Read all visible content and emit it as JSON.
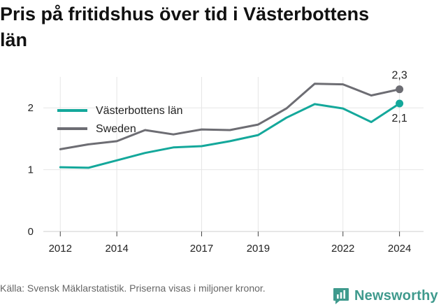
{
  "title": "Pris på fritidshus över tid i Västerbottens län",
  "footer": {
    "note": "Källa: Svensk Mäklarstatistik. Priserna visas i miljoner kronor.",
    "brand": "Newsworthy",
    "brand_icon": "newsworthy-logo-icon"
  },
  "colors": {
    "vasterbotten": "#14a89b",
    "sweden": "#6d6d73",
    "grid": "#e6e6e6",
    "brand": "#3f9a8d"
  },
  "chart_data": {
    "type": "line",
    "x": [
      2012,
      2013,
      2014,
      2015,
      2016,
      2017,
      2018,
      2019,
      2020,
      2021,
      2022,
      2023,
      2024
    ],
    "x_ticks": [
      "2012",
      "2014",
      "2017",
      "2019",
      "2022",
      "2024"
    ],
    "y_ticks": [
      "0",
      "1",
      "2"
    ],
    "ylim": [
      0,
      2.5
    ],
    "grid": true,
    "legend_position": "top-left",
    "series": [
      {
        "name": "Västerbottens län",
        "color": "#14a89b",
        "values": [
          1.04,
          1.03,
          1.15,
          1.27,
          1.36,
          1.38,
          1.46,
          1.56,
          1.84,
          2.06,
          1.99,
          1.77,
          2.07
        ],
        "end_label": "2,1"
      },
      {
        "name": "Sweden",
        "color": "#6d6d73",
        "values": [
          1.33,
          1.41,
          1.46,
          1.64,
          1.57,
          1.65,
          1.64,
          1.73,
          1.99,
          2.39,
          2.38,
          2.2,
          2.3
        ],
        "end_label": "2,3"
      }
    ]
  }
}
